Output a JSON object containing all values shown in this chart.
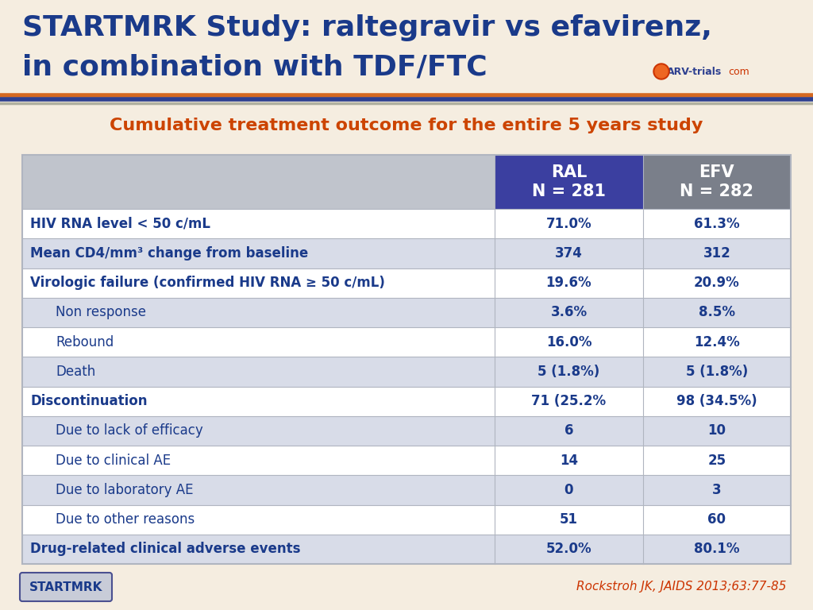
{
  "title_line1": "STARTMRK Study: raltegravir vs efavirenz,",
  "title_line2": "in combination with TDF/FTC",
  "subtitle": "Cumulative treatment outcome for the entire 5 years study",
  "bg_color": "#f5ede0",
  "title_color": "#1a3a8a",
  "subtitle_color": "#cc4400",
  "header_ral_color": "#3b3fa0",
  "header_efv_color": "#7a7f8a",
  "header_label_color": "#c0c4cc",
  "rows": [
    {
      "label": "HIV RNA level < 50 c/mL",
      "ral": "71.0%",
      "efv": "61.3%",
      "indent": false,
      "bold": true,
      "bg": "#ffffff"
    },
    {
      "label": "Mean CD4/mm³ change from baseline",
      "ral": "374",
      "efv": "312",
      "indent": false,
      "bold": true,
      "bg": "#d8dce8"
    },
    {
      "label": "Virologic failure (confirmed HIV RNA ≥ 50 c/mL)",
      "ral": "19.6%",
      "efv": "20.9%",
      "indent": false,
      "bold": true,
      "bg": "#ffffff"
    },
    {
      "label": "Non response",
      "ral": "3.6%",
      "efv": "8.5%",
      "indent": true,
      "bold": false,
      "bg": "#d8dce8"
    },
    {
      "label": "Rebound",
      "ral": "16.0%",
      "efv": "12.4%",
      "indent": true,
      "bold": false,
      "bg": "#ffffff"
    },
    {
      "label": "Death",
      "ral": "5 (1.8%)",
      "efv": "5 (1.8%)",
      "indent": true,
      "bold": false,
      "bg": "#d8dce8"
    },
    {
      "label": "Discontinuation",
      "ral": "71 (25.2%",
      "efv": "98 (34.5%)",
      "indent": false,
      "bold": true,
      "bg": "#ffffff"
    },
    {
      "label": "Due to lack of efficacy",
      "ral": "6",
      "efv": "10",
      "indent": true,
      "bold": false,
      "bg": "#d8dce8"
    },
    {
      "label": "Due to clinical AE",
      "ral": "14",
      "efv": "25",
      "indent": true,
      "bold": false,
      "bg": "#ffffff"
    },
    {
      "label": "Due to laboratory AE",
      "ral": "0",
      "efv": "3",
      "indent": true,
      "bold": false,
      "bg": "#d8dce8"
    },
    {
      "label": "Due to other reasons",
      "ral": "51",
      "efv": "60",
      "indent": true,
      "bold": false,
      "bg": "#ffffff"
    },
    {
      "label": "Drug-related clinical adverse events",
      "ral": "52.0%",
      "efv": "80.1%",
      "indent": false,
      "bold": true,
      "bg": "#d8dce8"
    }
  ],
  "footer_left": "STARTMRK",
  "footer_right": "Rockstroh JK, JAIDS 2013;63:77-85",
  "sep_orange": "#d46820",
  "sep_blue": "#2e4090",
  "sep_gray": "#b0b0a0",
  "table_border_color": "#b0b5c0",
  "label_text_color": "#1a3a8a",
  "value_text_color": "#1a3a8a",
  "arv_blue": "#2e4090",
  "arv_red": "#cc3300",
  "startmrk_box_bg": "#c8ccd8",
  "startmrk_box_border": "#4a5090"
}
